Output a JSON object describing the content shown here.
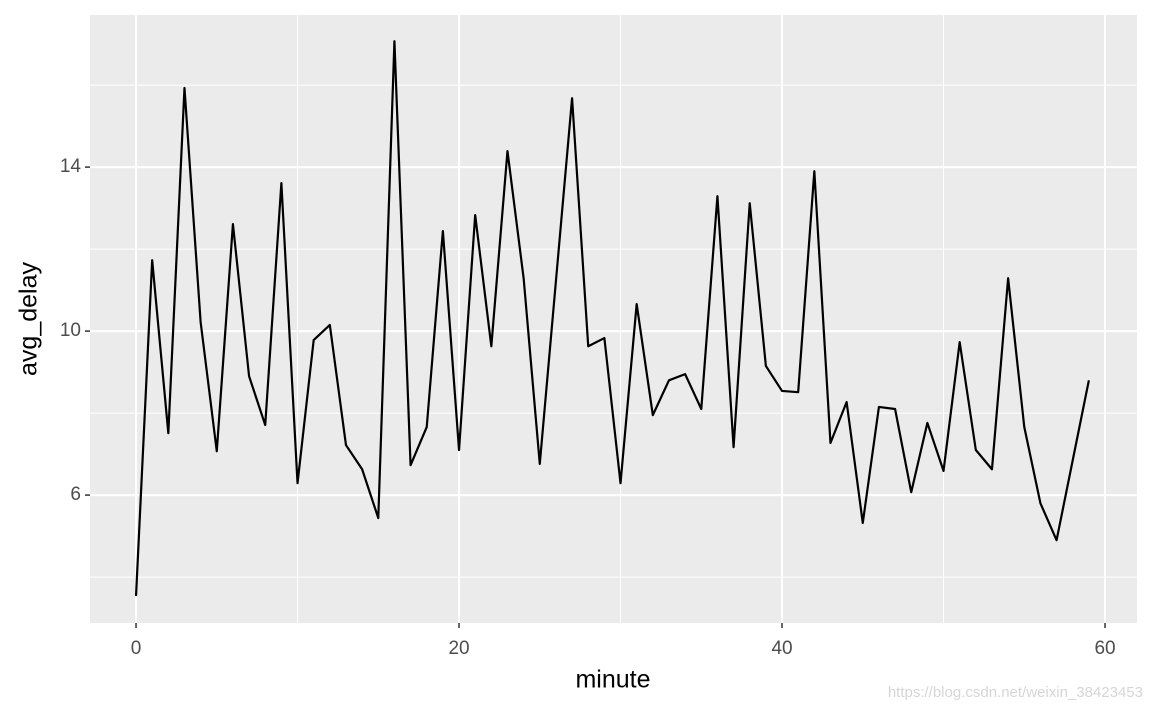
{
  "chart_data": {
    "type": "line",
    "x_label": "minute",
    "y_label": "avg_delay",
    "x": [
      0,
      1,
      2,
      3,
      4,
      5,
      6,
      7,
      8,
      9,
      10,
      11,
      12,
      13,
      14,
      15,
      16,
      17,
      18,
      19,
      20,
      21,
      22,
      23,
      24,
      25,
      26,
      27,
      28,
      29,
      30,
      31,
      32,
      33,
      34,
      35,
      36,
      37,
      38,
      39,
      40,
      41,
      42,
      43,
      44,
      45,
      46,
      47,
      48,
      49,
      50,
      51,
      52,
      53,
      54,
      55,
      56,
      57,
      58,
      59
    ],
    "series": [
      {
        "color": "#000000",
        "values": [
          3.54,
          11.73,
          7.51,
          15.93,
          10.22,
          7.07,
          12.61,
          8.9,
          7.71,
          13.61,
          6.29,
          9.78,
          10.15,
          7.22,
          6.63,
          5.44,
          17.07,
          6.73,
          7.66,
          12.44,
          7.1,
          12.83,
          9.63,
          14.39,
          11.29,
          6.76,
          11.22,
          15.68,
          9.63,
          9.83,
          6.29,
          10.66,
          7.95,
          8.8,
          8.95,
          8.1,
          13.29,
          7.17,
          13.12,
          9.15,
          8.54,
          8.51,
          13.9,
          7.27,
          8.27,
          5.32,
          8.15,
          8.1,
          6.07,
          7.76,
          6.59,
          9.73,
          7.1,
          6.63,
          11.29,
          7.66,
          5.8,
          4.9,
          6.85,
          8.8
        ]
      }
    ],
    "xlim": [
      -2.85,
      61.98
    ],
    "ylim": [
      2.88,
      17.71
    ],
    "xticks": [
      0,
      20,
      40,
      60
    ],
    "yticks": [
      6,
      10,
      14
    ],
    "grid": true
  },
  "watermark": "https://blog.csdn.net/weixin_38423453"
}
